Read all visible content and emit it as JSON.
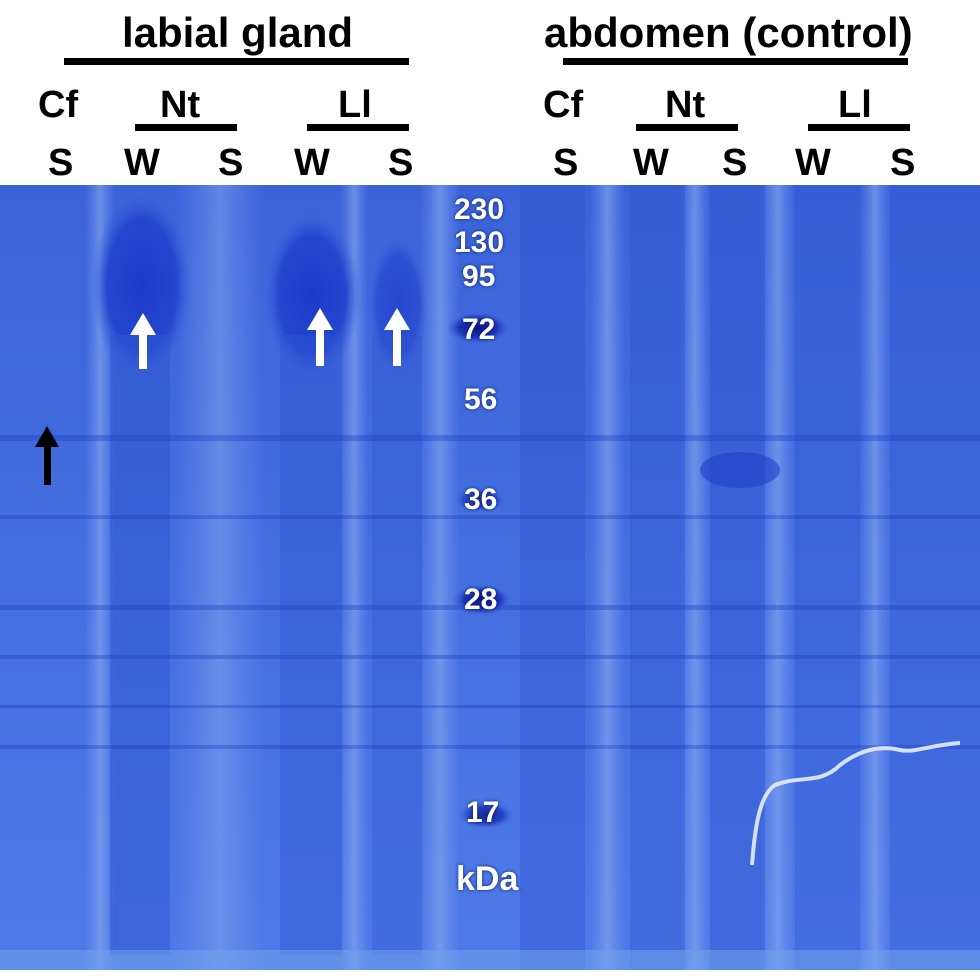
{
  "header": {
    "left_group": "labial gland",
    "right_group": "abdomen (control)"
  },
  "lanes": {
    "left": {
      "group_labels": [
        "Cf",
        "Nt",
        "Ll"
      ],
      "fraction_labels": [
        "S",
        "W",
        "S",
        "W",
        "S"
      ]
    },
    "right": {
      "group_labels": [
        "Cf",
        "Nt",
        "Ll"
      ],
      "fraction_labels": [
        "S",
        "W",
        "S",
        "W",
        "S"
      ]
    }
  },
  "marker": {
    "values": [
      "230",
      "130",
      "95",
      "72",
      "56",
      "36",
      "28",
      "17"
    ],
    "unit": "kDa"
  },
  "colors": {
    "gel_background": "#3f6de0",
    "band_dark": "#1f3fc8",
    "arrow_white": "#ffffff",
    "arrow_black": "#000000"
  }
}
